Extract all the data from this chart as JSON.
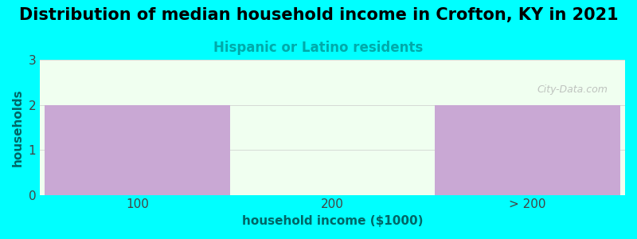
{
  "title": "Distribution of median household income in Crofton, KY in 2021",
  "subtitle": "Hispanic or Latino residents",
  "categories": [
    "100",
    "200",
    "> 200"
  ],
  "values": [
    2,
    0,
    2
  ],
  "bar_colors": [
    "#C9A8D4",
    "#D8EED0",
    "#C9A8D4"
  ],
  "xlabel": "household income ($1000)",
  "ylabel": "households",
  "ylim": [
    0,
    3
  ],
  "yticks": [
    0,
    1,
    2,
    3
  ],
  "background_color": "#00FFFF",
  "plot_bg_color": "#F0FFF0",
  "title_fontsize": 15,
  "subtitle_fontsize": 12,
  "subtitle_color": "#00AAAA",
  "axis_label_color": "#006666",
  "tick_label_color": "#444444",
  "watermark": "City-Data.com"
}
